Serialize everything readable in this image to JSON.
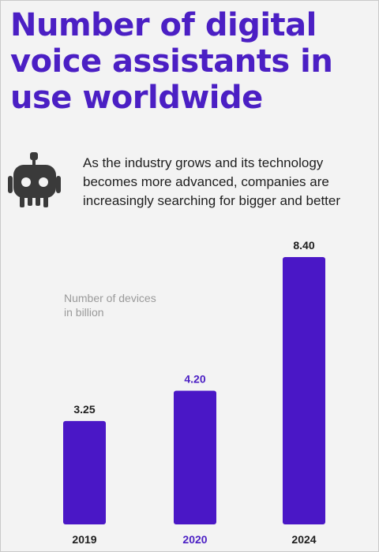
{
  "page": {
    "title": "Number of digital voice assistants in use worldwide",
    "description": "As the industry grows and its technology becomes more advanced, companies are increasingly searching for bigger and better",
    "robot_icon": "robot-icon"
  },
  "colors": {
    "accent": "#4b1fc4",
    "bar": "#4a17c6",
    "text": "#1e1e1e",
    "muted": "#9a9a9a",
    "background": "#f3f3f3"
  },
  "chart_data": {
    "type": "bar",
    "categories": [
      "2019",
      "2020",
      "2024"
    ],
    "values": [
      3.25,
      4.2,
      8.4
    ],
    "value_labels": [
      "3.25",
      "4.20",
      "8.40"
    ],
    "highlighted_category": "2020",
    "title": "",
    "ylabel": "Number of devices in billion",
    "ylabel_lines": [
      "Number of devices",
      "in billion"
    ],
    "xlabel": "",
    "ylim": [
      0,
      8.4
    ],
    "grid": false,
    "legend": "none"
  }
}
